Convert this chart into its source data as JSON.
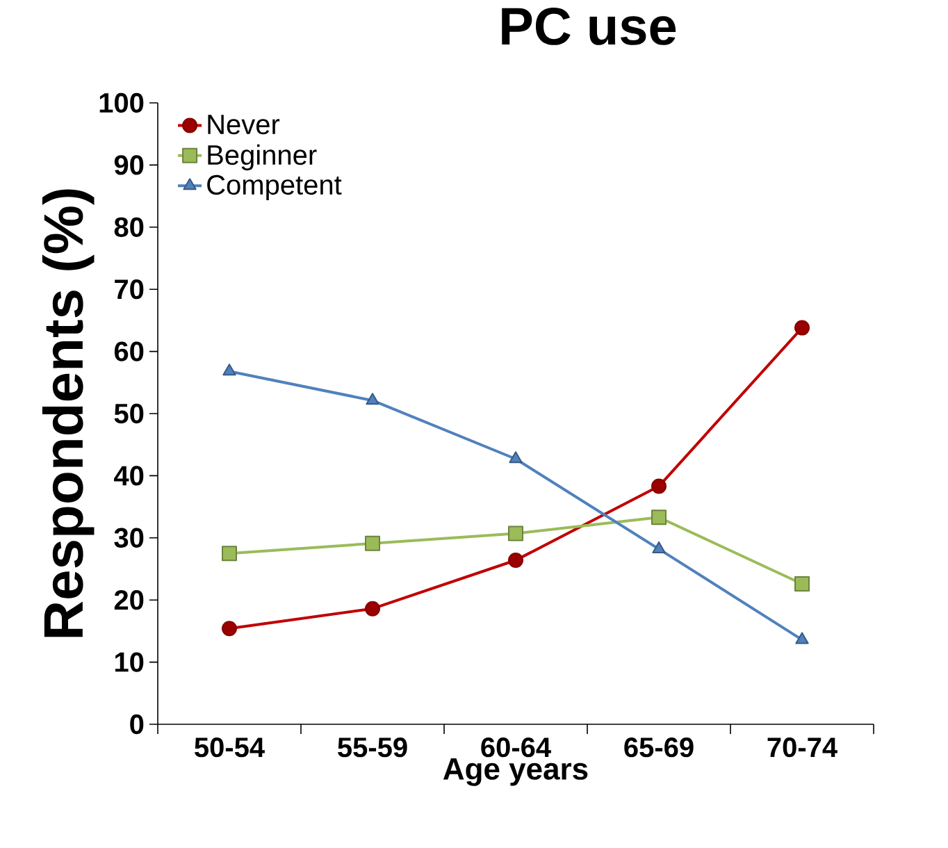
{
  "chart_data": {
    "type": "line",
    "title": "PC use",
    "xlabel": "Age years",
    "ylabel": "Respondents (%)",
    "categories": [
      "50-54",
      "55-59",
      "60-64",
      "65-69",
      "70-74"
    ],
    "series": [
      {
        "name": "Never",
        "color": "#c00000",
        "marker": "circle",
        "values": [
          15.4,
          18.6,
          26.4,
          38.3,
          63.8
        ]
      },
      {
        "name": "Beginner",
        "color": "#9bbb59",
        "marker": "square",
        "values": [
          27.5,
          29.1,
          30.7,
          33.3,
          22.6
        ]
      },
      {
        "name": "Competent",
        "color": "#4f81bd",
        "marker": "triangle",
        "values": [
          56.8,
          52.1,
          42.7,
          28.2,
          13.6
        ]
      }
    ],
    "ylim": [
      0,
      100
    ],
    "yticks": [
      0,
      10,
      20,
      30,
      40,
      50,
      60,
      70,
      80,
      90,
      100
    ],
    "legend": "top left",
    "grid": false,
    "line_style": "solid"
  }
}
